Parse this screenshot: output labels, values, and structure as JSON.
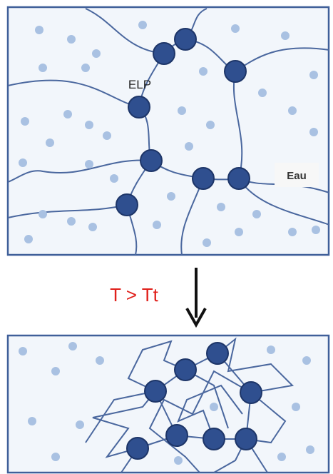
{
  "labels": {
    "elp": "ELP",
    "water": "Eau",
    "condition": "T > Tt"
  }
}
